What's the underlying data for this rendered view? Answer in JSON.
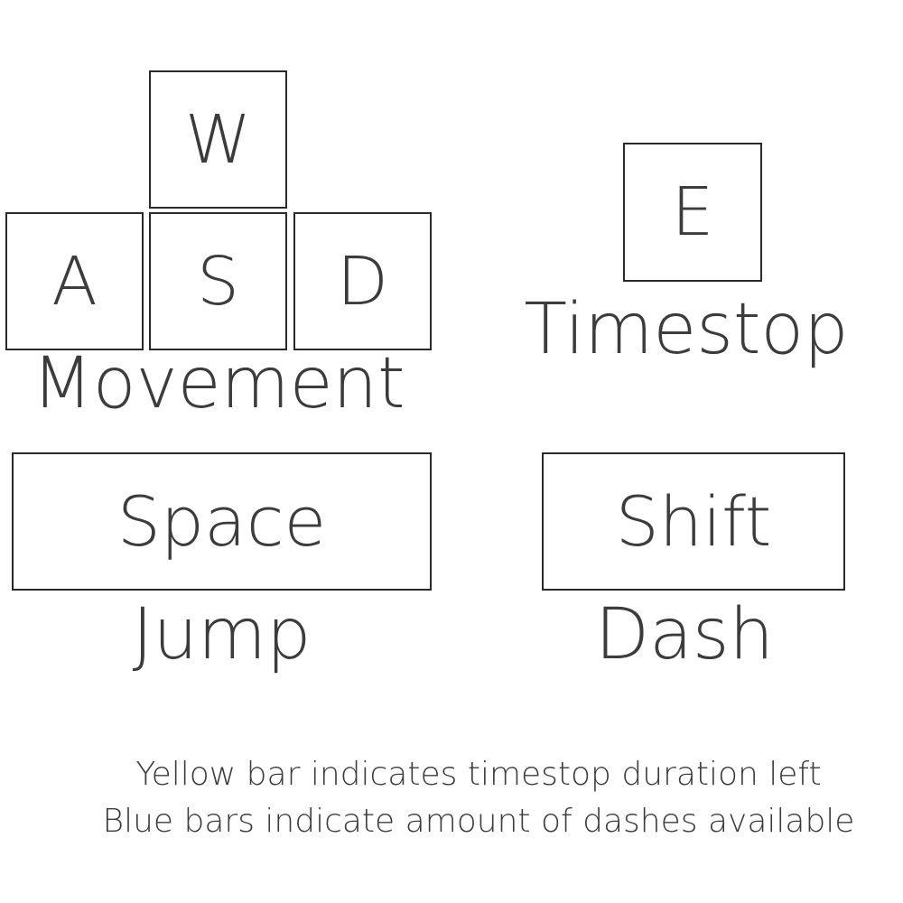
{
  "controls": {
    "movement": {
      "keys": {
        "w": "W",
        "a": "A",
        "s": "S",
        "d": "D"
      },
      "label": "Movement"
    },
    "timestop": {
      "key": "E",
      "label": "Timestop"
    },
    "jump": {
      "key": "Space",
      "label": "Jump"
    },
    "dash": {
      "key": "Shift",
      "label": "Dash"
    }
  },
  "hints": [
    "Yellow bar indicates timestop duration left",
    "Blue bars indicate amount of dashes available"
  ]
}
